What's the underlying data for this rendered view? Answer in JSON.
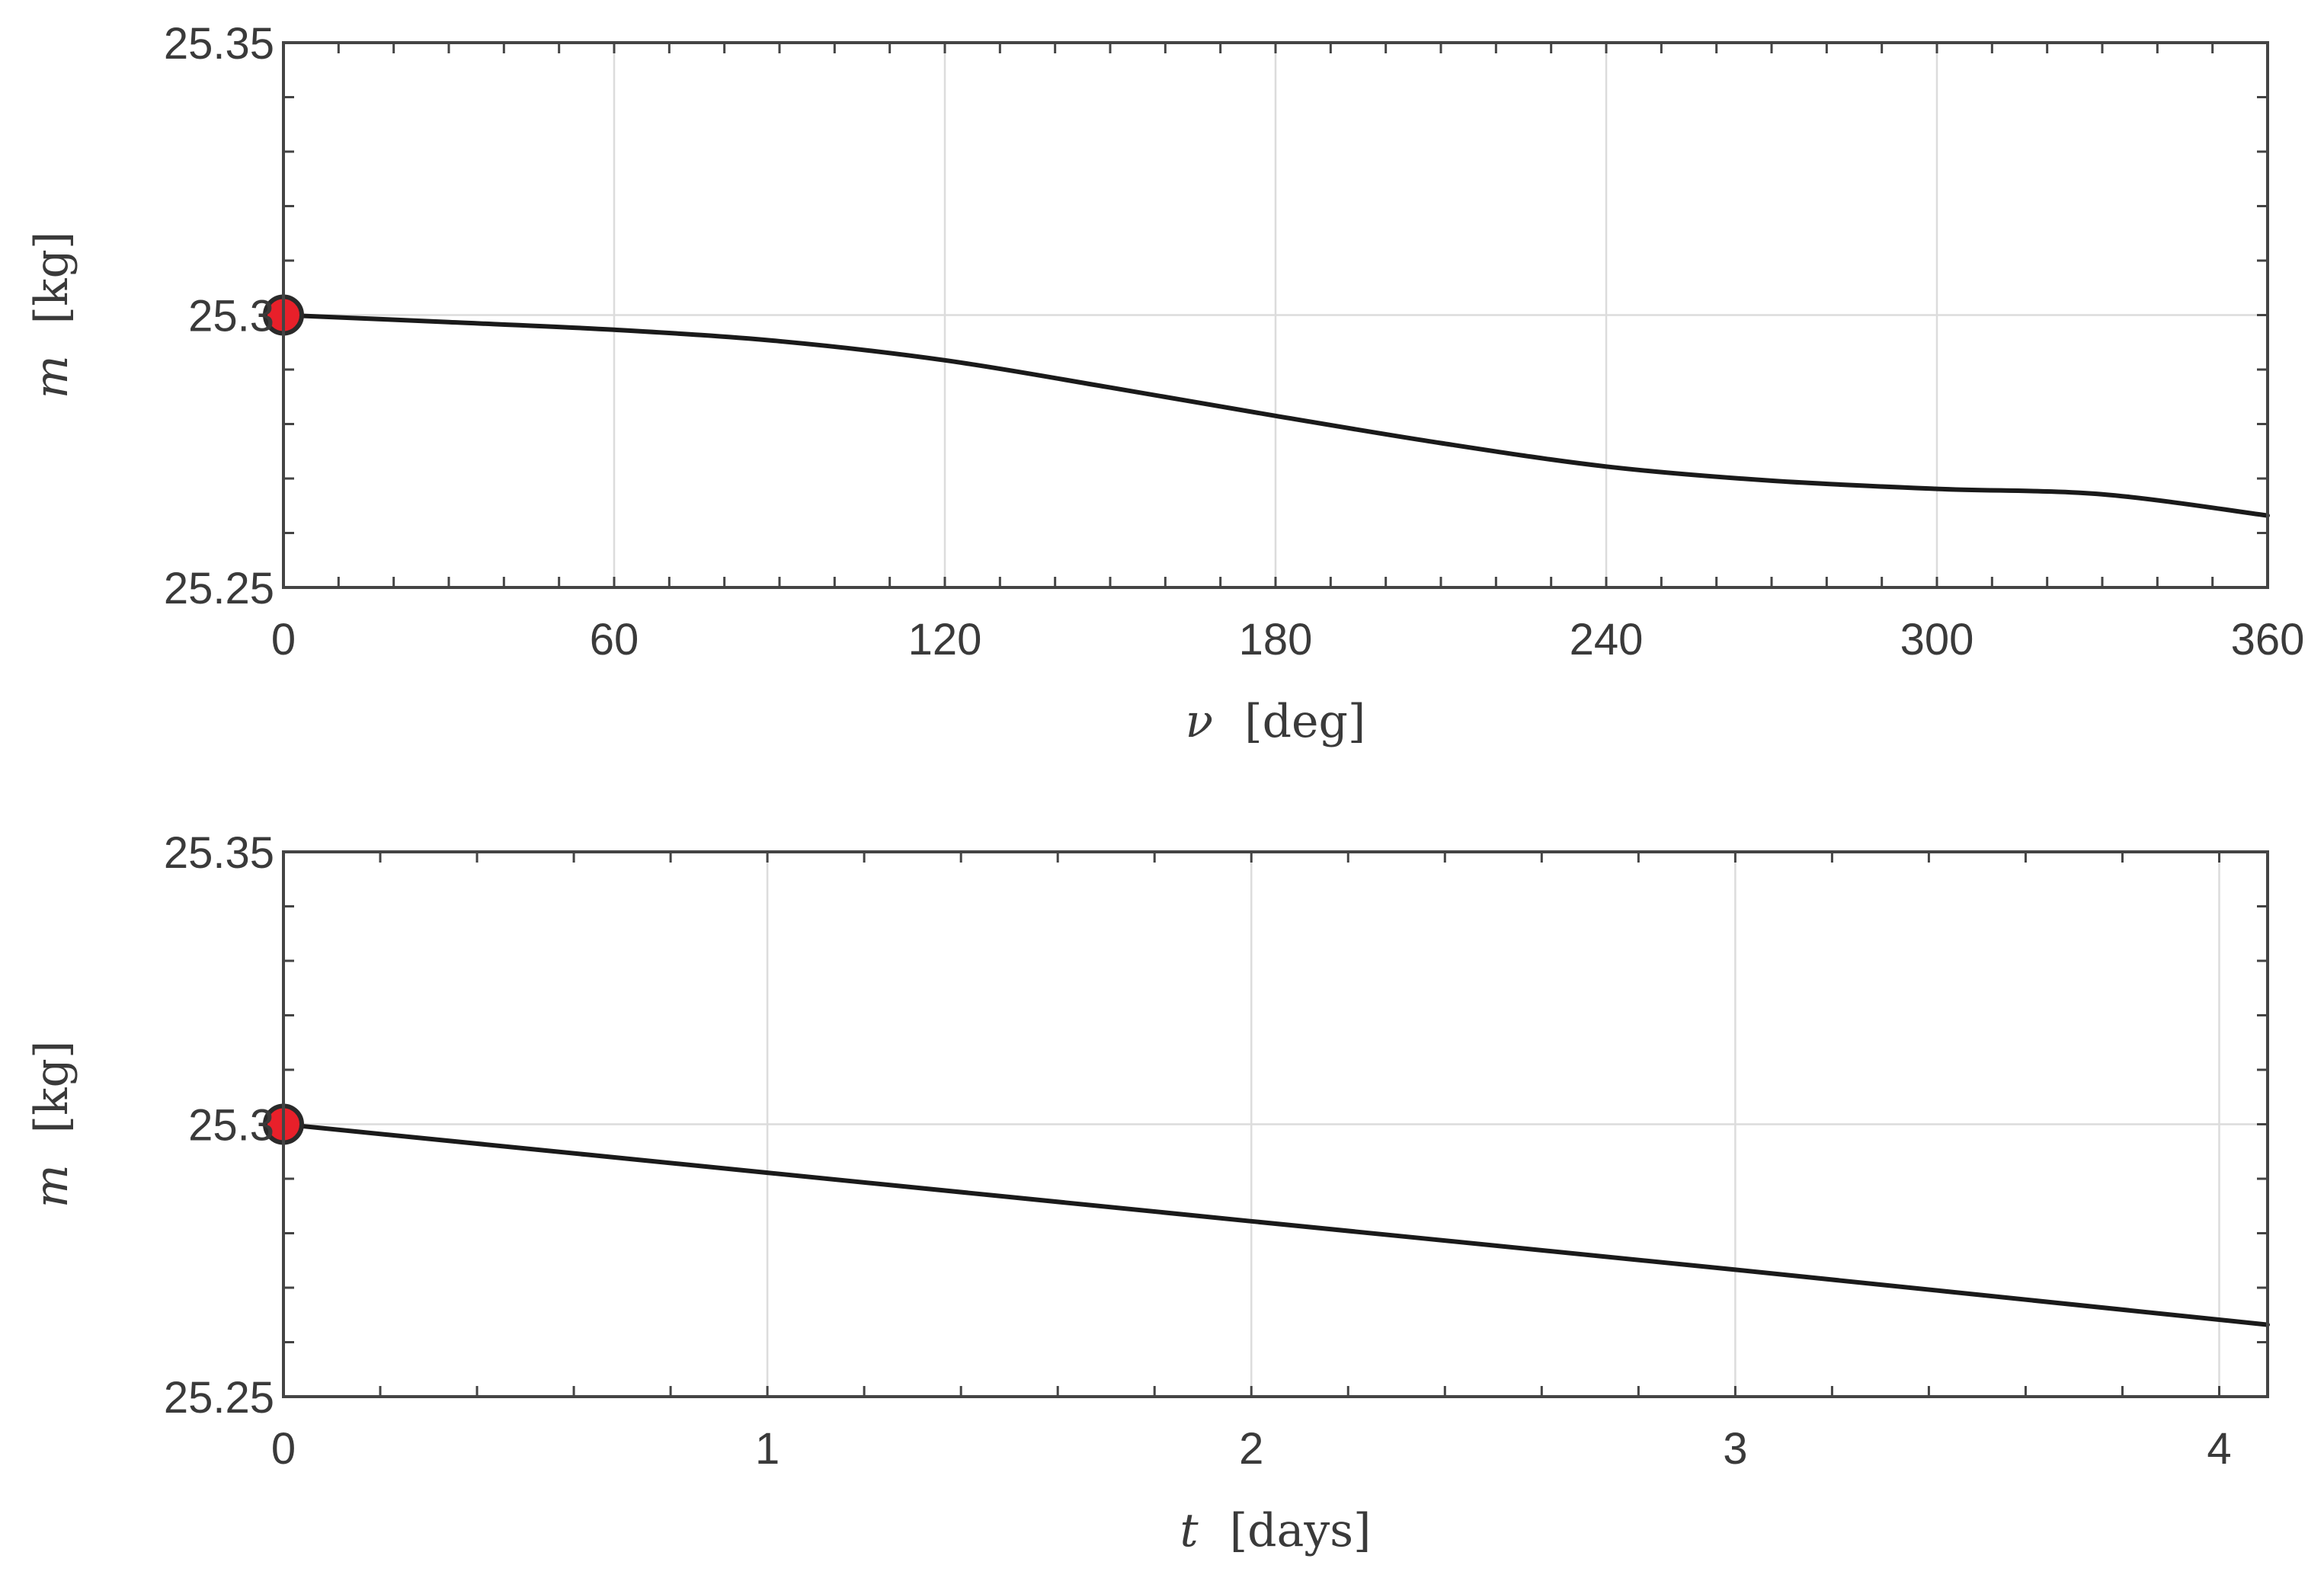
{
  "colors": {
    "line": "#1a1a1a",
    "marker_fill": "#e8202a",
    "marker_edge": "#2a2a2a"
  },
  "chart_data": [
    {
      "type": "line",
      "title": "",
      "xlabel_symbol": "ν",
      "xlabel_unit": "[deg]",
      "ylabel_symbol": "m",
      "ylabel_unit": "[kg]",
      "xlim": [
        0,
        360
      ],
      "ylim": [
        25.25,
        25.35
      ],
      "xticks": [
        0,
        60,
        120,
        180,
        240,
        300,
        360
      ],
      "xtick_labels": [
        "0",
        "60",
        "120",
        "180",
        "240",
        "300",
        "360"
      ],
      "xminor_step": 10,
      "yticks": [
        25.25,
        25.3,
        25.35
      ],
      "ytick_labels": [
        "25.25",
        "25.3",
        "25.35"
      ],
      "yminor_step": 0.01,
      "grid": true,
      "legend": "none",
      "series": [
        {
          "x": [
            0,
            30,
            60,
            90,
            120,
            150,
            180,
            210,
            240,
            270,
            300,
            330,
            360
          ],
          "y": [
            25.3,
            25.2987,
            25.2973,
            25.2952,
            25.2917,
            25.2867,
            25.2815,
            25.2765,
            25.2722,
            25.2696,
            25.2681,
            25.2671,
            25.2632
          ]
        }
      ],
      "marker": {
        "x": 0,
        "y": 25.3,
        "label": "initial point"
      }
    },
    {
      "type": "line",
      "title": "",
      "xlabel_symbol": "t",
      "xlabel_unit": "[days]",
      "ylabel_symbol": "m",
      "ylabel_unit": "[kg]",
      "xlim": [
        0,
        4.1
      ],
      "ylim": [
        25.25,
        25.35
      ],
      "xticks": [
        0,
        1,
        2,
        3,
        4
      ],
      "xtick_labels": [
        "0",
        "1",
        "2",
        "3",
        "4"
      ],
      "xminor_step": 0.2,
      "yticks": [
        25.25,
        25.3,
        25.35
      ],
      "ytick_labels": [
        "25.25",
        "25.3",
        "25.35"
      ],
      "yminor_step": 0.01,
      "grid": true,
      "legend": "none",
      "series": [
        {
          "x": [
            0,
            1,
            2,
            3,
            4.1
          ],
          "y": [
            25.3,
            25.2911,
            25.2822,
            25.2733,
            25.2632
          ]
        }
      ],
      "marker": {
        "x": 0,
        "y": 25.3,
        "label": "initial point"
      }
    }
  ]
}
